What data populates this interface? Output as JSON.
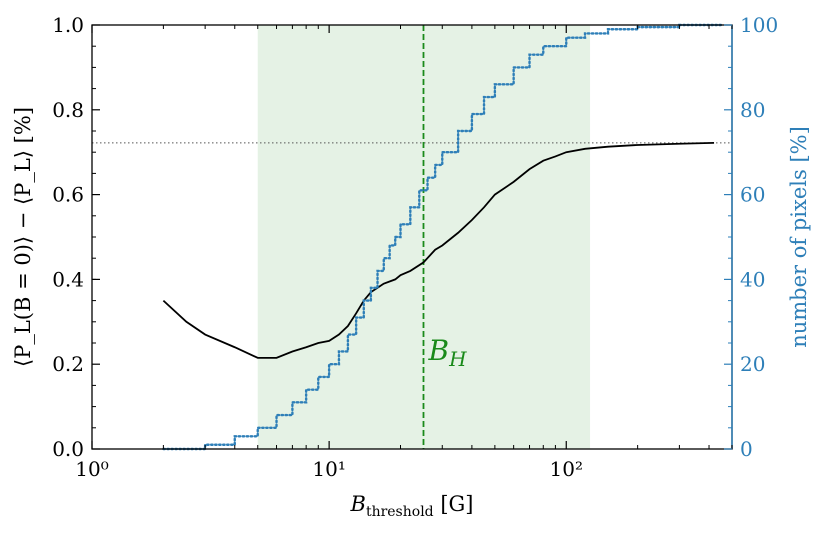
{
  "chart_data": {
    "type": "line",
    "x_scale": "log",
    "xlim": [
      1,
      500
    ],
    "ylim": [
      0,
      1.0
    ],
    "y2lim": [
      0,
      100
    ],
    "xticks": [
      {
        "value": 1,
        "label": "10⁰"
      },
      {
        "value": 10,
        "label": "10¹"
      },
      {
        "value": 100,
        "label": "10²"
      }
    ],
    "yticks": [
      0.0,
      0.2,
      0.4,
      0.6,
      0.8,
      1.0
    ],
    "yticks_labels": [
      "0.0",
      "0.2",
      "0.4",
      "0.6",
      "0.8",
      "1.0"
    ],
    "y2ticks": [
      0,
      20,
      40,
      60,
      80,
      100
    ],
    "y2ticks_labels": [
      "0",
      "20",
      "40",
      "60",
      "80",
      "100"
    ],
    "xlabel_main": "B",
    "xlabel_sub": "threshold",
    "xlabel_unit": " [G]",
    "ylabel": "⟨P_L(B = 0)⟩ − ⟨P_L⟩ [%]",
    "y2label": "number of pixels [%]",
    "shaded_region": {
      "x_start": 5,
      "x_end": 126,
      "color": "#d4ead4"
    },
    "vline": {
      "x": 25,
      "color": "#1a8a1a",
      "label_main": "B",
      "label_sub": "H"
    },
    "hline": {
      "y": 0.722,
      "color": "#555555"
    },
    "series": [
      {
        "axis": "left",
        "color": "#000000",
        "style": "solid",
        "x": [
          2,
          2.5,
          3,
          4,
          5,
          6,
          7,
          8,
          9,
          10,
          11,
          12,
          13,
          14,
          15,
          17,
          19,
          20,
          22,
          25,
          28,
          30,
          35,
          40,
          45,
          50,
          60,
          70,
          80,
          90,
          100,
          120,
          150,
          200,
          300,
          420
        ],
        "y": [
          0.35,
          0.3,
          0.27,
          0.24,
          0.215,
          0.215,
          0.23,
          0.24,
          0.25,
          0.255,
          0.27,
          0.29,
          0.32,
          0.35,
          0.37,
          0.39,
          0.4,
          0.41,
          0.42,
          0.44,
          0.47,
          0.48,
          0.51,
          0.54,
          0.57,
          0.6,
          0.63,
          0.66,
          0.68,
          0.69,
          0.7,
          0.708,
          0.713,
          0.717,
          0.72,
          0.722
        ]
      },
      {
        "axis": "right",
        "color": "#2e7fb8",
        "style": "dotted",
        "x": [
          2,
          3,
          4,
          5,
          6,
          7,
          8,
          9,
          10,
          11,
          12,
          13,
          14,
          15,
          16,
          17,
          18,
          19,
          20,
          22,
          24,
          26,
          28,
          30,
          35,
          40,
          45,
          50,
          60,
          70,
          80,
          100,
          120,
          150,
          200,
          300,
          450
        ],
        "y": [
          0,
          1,
          3,
          5,
          8,
          11,
          14,
          17,
          20,
          23,
          27,
          31,
          35,
          38,
          42,
          45,
          48,
          50,
          53,
          57,
          61,
          64,
          67,
          70,
          75,
          79,
          83,
          86,
          90,
          93,
          95,
          97,
          98,
          99,
          99.5,
          100,
          100
        ]
      }
    ]
  }
}
